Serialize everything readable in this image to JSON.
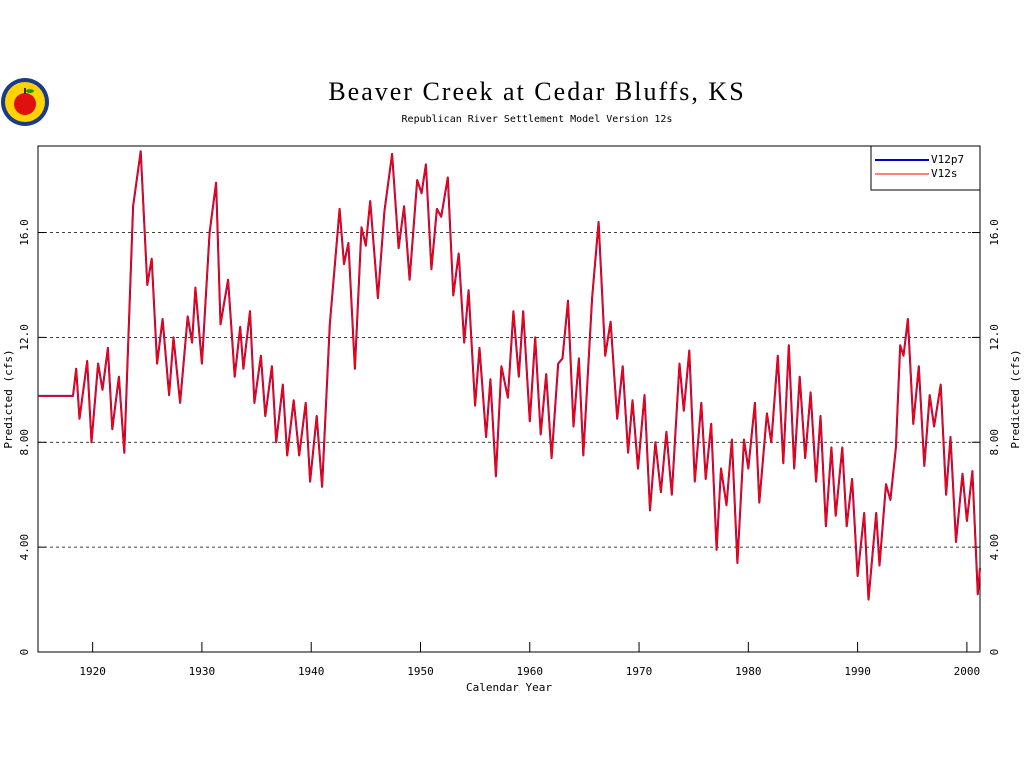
{
  "chart_data": {
    "type": "line",
    "title": "Beaver Creek at Cedar Bluffs, KS",
    "subtitle": "Republican River Settlement Model Version 12s",
    "xlabel": "Calendar Year",
    "ylabel": "Predicted (cfs)",
    "xlim": [
      1915,
      2001.2
    ],
    "ylim": [
      0,
      19.3
    ],
    "xticks": [
      1920,
      1930,
      1940,
      1950,
      1960,
      1970,
      1980,
      1990,
      2000
    ],
    "yticks": [
      0,
      {
        "value": 4,
        "label": "4.00"
      },
      {
        "value": 8,
        "label": "8.00"
      },
      {
        "value": 12,
        "label": "12.0"
      },
      {
        "value": 16,
        "label": "16.0"
      }
    ],
    "grid": true,
    "legend": "upper right",
    "x": [
      1915,
      1918.2,
      1918.5,
      1918.8,
      1919.5,
      1919.9,
      1920.5,
      1920.9,
      1921.4,
      1921.8,
      1922.4,
      1922.9,
      1923.7,
      1924.4,
      1925.0,
      1925.4,
      1925.9,
      1926.4,
      1927.0,
      1927.4,
      1928.0,
      1928.7,
      1929.1,
      1929.4,
      1930.0,
      1930.7,
      1931.3,
      1931.7,
      1932.4,
      1933.0,
      1933.5,
      1933.8,
      1934.4,
      1934.8,
      1935.4,
      1935.8,
      1936.4,
      1936.8,
      1937.4,
      1937.8,
      1938.4,
      1938.9,
      1939.5,
      1939.9,
      1940.5,
      1941.0,
      1941.7,
      1942.6,
      1943.0,
      1943.4,
      1944.0,
      1944.6,
      1945.0,
      1945.4,
      1946.1,
      1946.7,
      1947.4,
      1948.0,
      1948.5,
      1949.0,
      1949.7,
      1950.1,
      1950.5,
      1951.0,
      1951.5,
      1951.9,
      1952.5,
      1953.0,
      1953.5,
      1954.0,
      1954.4,
      1955.0,
      1955.4,
      1956.0,
      1956.4,
      1956.9,
      1957.4,
      1958.0,
      1958.5,
      1959.0,
      1959.4,
      1960.0,
      1960.5,
      1961.0,
      1961.5,
      1962.0,
      1962.6,
      1963.0,
      1963.5,
      1964.0,
      1964.5,
      1964.9,
      1965.7,
      1966.3,
      1966.9,
      1967.4,
      1968.0,
      1968.5,
      1969.0,
      1969.4,
      1969.9,
      1970.5,
      1971.0,
      1971.5,
      1972.0,
      1972.5,
      1973.0,
      1973.7,
      1974.1,
      1974.6,
      1975.1,
      1975.7,
      1976.1,
      1976.6,
      1977.1,
      1977.5,
      1978.0,
      1978.5,
      1979.0,
      1979.6,
      1980.0,
      1980.6,
      1981.0,
      1981.7,
      1982.1,
      1982.7,
      1983.2,
      1983.7,
      1984.2,
      1984.7,
      1985.2,
      1985.7,
      1986.2,
      1986.6,
      1987.1,
      1987.6,
      1988.0,
      1988.6,
      1989.0,
      1989.5,
      1990.0,
      1990.6,
      1991.0,
      1991.7,
      1992.0,
      1992.6,
      1993.0,
      1993.5,
      1993.9,
      1994.2,
      1994.6,
      1995.1,
      1995.6,
      1996.1,
      1996.6,
      1997.0,
      1997.6,
      1998.1,
      1998.5,
      1999.0,
      1999.6,
      2000.0,
      2000.5,
      2001.0,
      2001.2
    ],
    "series": [
      {
        "name": "V12p7",
        "color": "#0000cc",
        "values": [
          9.77,
          9.77,
          10.8,
          8.9,
          11.1,
          8.0,
          11.0,
          10.0,
          11.6,
          8.5,
          10.5,
          7.6,
          17.0,
          19.1,
          14.0,
          15.0,
          11.0,
          12.7,
          9.8,
          12.0,
          9.5,
          12.8,
          11.8,
          13.9,
          11.0,
          16.0,
          17.9,
          12.5,
          14.2,
          10.5,
          12.4,
          10.8,
          13.0,
          9.5,
          11.3,
          9.0,
          10.9,
          8.0,
          10.2,
          7.5,
          9.6,
          7.5,
          9.5,
          6.5,
          9.0,
          6.3,
          12.5,
          16.9,
          14.8,
          15.6,
          10.8,
          16.2,
          15.5,
          17.2,
          13.5,
          16.8,
          19.0,
          15.4,
          17.0,
          14.2,
          18.0,
          17.5,
          18.6,
          14.6,
          16.9,
          16.6,
          18.1,
          13.6,
          15.2,
          11.8,
          13.8,
          9.4,
          11.6,
          8.2,
          10.4,
          6.7,
          10.9,
          9.7,
          13.0,
          10.5,
          13.0,
          8.8,
          12.0,
          8.3,
          10.6,
          7.4,
          11.0,
          11.2,
          13.4,
          8.6,
          11.2,
          7.5,
          13.5,
          16.4,
          11.3,
          12.6,
          8.9,
          10.9,
          7.6,
          9.6,
          7.0,
          9.8,
          5.4,
          8.0,
          6.1,
          8.4,
          6.0,
          11.0,
          9.2,
          11.5,
          6.5,
          9.5,
          6.6,
          8.7,
          3.9,
          7.0,
          5.6,
          8.1,
          3.4,
          8.1,
          7.0,
          9.5,
          5.7,
          9.1,
          8.0,
          11.3,
          7.2,
          11.7,
          7.0,
          10.5,
          7.4,
          9.9,
          6.5,
          9.0,
          4.8,
          7.8,
          5.2,
          7.8,
          4.8,
          6.6,
          2.9,
          5.3,
          2.0,
          5.3,
          3.3,
          6.4,
          5.8,
          7.8,
          11.7,
          11.3,
          12.7,
          8.7,
          10.9,
          7.1,
          9.8,
          8.6,
          10.2,
          6.0,
          8.2,
          4.2,
          6.8,
          5.0,
          6.9,
          2.2,
          3.2
        ]
      },
      {
        "name": "V12s",
        "color": "#ff0000",
        "values": [
          9.77,
          9.77,
          10.8,
          8.9,
          11.1,
          8.0,
          11.0,
          10.0,
          11.6,
          8.5,
          10.5,
          7.6,
          17.0,
          19.1,
          14.0,
          15.0,
          11.0,
          12.7,
          9.8,
          12.0,
          9.5,
          12.8,
          11.8,
          13.9,
          11.0,
          16.0,
          17.9,
          12.5,
          14.2,
          10.5,
          12.4,
          10.8,
          13.0,
          9.5,
          11.3,
          9.0,
          10.9,
          8.0,
          10.2,
          7.5,
          9.6,
          7.5,
          9.5,
          6.5,
          9.0,
          6.3,
          12.5,
          16.9,
          14.8,
          15.6,
          10.8,
          16.2,
          15.5,
          17.2,
          13.5,
          16.8,
          19.0,
          15.4,
          17.0,
          14.2,
          18.0,
          17.5,
          18.6,
          14.6,
          16.9,
          16.6,
          18.1,
          13.6,
          15.2,
          11.8,
          13.8,
          9.4,
          11.6,
          8.2,
          10.4,
          6.7,
          10.9,
          9.7,
          13.0,
          10.5,
          13.0,
          8.8,
          12.0,
          8.3,
          10.6,
          7.4,
          11.0,
          11.2,
          13.4,
          8.6,
          11.2,
          7.5,
          13.5,
          16.4,
          11.3,
          12.6,
          8.9,
          10.9,
          7.6,
          9.6,
          7.0,
          9.8,
          5.4,
          8.0,
          6.1,
          8.4,
          6.0,
          11.0,
          9.2,
          11.5,
          6.5,
          9.5,
          6.6,
          8.7,
          3.9,
          7.0,
          5.6,
          8.1,
          3.4,
          8.1,
          7.0,
          9.5,
          5.7,
          9.1,
          8.0,
          11.3,
          7.2,
          11.7,
          7.0,
          10.5,
          7.4,
          9.9,
          6.5,
          9.0,
          4.8,
          7.8,
          5.2,
          7.8,
          4.8,
          6.6,
          2.9,
          5.3,
          2.0,
          5.3,
          3.3,
          6.4,
          5.8,
          7.8,
          11.7,
          11.3,
          12.7,
          8.7,
          10.9,
          7.1,
          9.8,
          8.6,
          10.2,
          6.0,
          8.2,
          4.2,
          6.8,
          5.0,
          6.9,
          2.2,
          3.2
        ]
      }
    ]
  }
}
